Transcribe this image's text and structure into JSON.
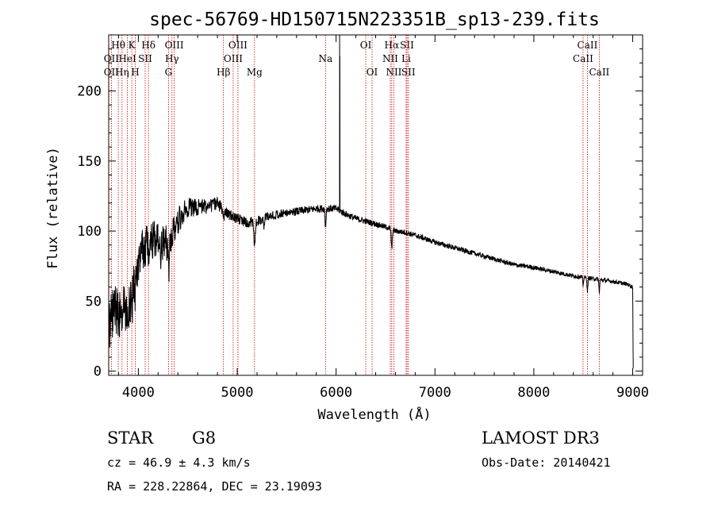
{
  "chart_data": {
    "type": "line",
    "title": "spec-56769-HD150715N223351B_sp13-239.fits",
    "xlabel": "Wavelength (Å)",
    "ylabel": "Flux (relative)",
    "xlim": [
      3700,
      9100
    ],
    "ylim": [
      -3,
      240
    ],
    "xticks": [
      4000,
      5000,
      6000,
      7000,
      8000,
      9000
    ],
    "yticks": [
      0,
      50,
      100,
      150,
      200
    ],
    "series": [
      {
        "name": "spectrum",
        "continuum": [
          [
            3700,
            30
          ],
          [
            3750,
            45
          ],
          [
            3800,
            40
          ],
          [
            3850,
            45
          ],
          [
            3900,
            45
          ],
          [
            3950,
            60
          ],
          [
            4000,
            78
          ],
          [
            4050,
            88
          ],
          [
            4100,
            92
          ],
          [
            4150,
            94
          ],
          [
            4200,
            92
          ],
          [
            4250,
            90
          ],
          [
            4300,
            92
          ],
          [
            4350,
            100
          ],
          [
            4400,
            107
          ],
          [
            4450,
            113
          ],
          [
            4500,
            117
          ],
          [
            4600,
            117
          ],
          [
            4700,
            118
          ],
          [
            4800,
            120
          ],
          [
            4900,
            112
          ],
          [
            5000,
            109
          ],
          [
            5100,
            106
          ],
          [
            5200,
            107
          ],
          [
            5300,
            110
          ],
          [
            5400,
            112
          ],
          [
            5500,
            113
          ],
          [
            5600,
            114
          ],
          [
            5700,
            115
          ],
          [
            5800,
            116
          ],
          [
            5900,
            116
          ],
          [
            6000,
            116
          ],
          [
            6100,
            112
          ],
          [
            6200,
            109
          ],
          [
            6300,
            107
          ],
          [
            6400,
            105
          ],
          [
            6500,
            103
          ],
          [
            6600,
            100
          ],
          [
            6700,
            99
          ],
          [
            6800,
            97
          ],
          [
            7000,
            92
          ],
          [
            7200,
            88
          ],
          [
            7400,
            84
          ],
          [
            7600,
            80
          ],
          [
            7800,
            76
          ],
          [
            8000,
            74
          ],
          [
            8200,
            71
          ],
          [
            8400,
            68
          ],
          [
            8600,
            66
          ],
          [
            8800,
            64
          ],
          [
            8950,
            62
          ],
          [
            9000,
            60
          ],
          [
            9005,
            2
          ]
        ],
        "absorption_lines": [
          {
            "x": 3934,
            "depth": 15,
            "width": 8
          },
          {
            "x": 3969,
            "depth": 12,
            "width": 8
          },
          {
            "x": 4101,
            "depth": 10,
            "width": 8
          },
          {
            "x": 4226,
            "depth": 8,
            "width": 5
          },
          {
            "x": 4308,
            "depth": 18,
            "width": 10
          },
          {
            "x": 4340,
            "depth": 10,
            "width": 7
          },
          {
            "x": 4861,
            "depth": 8,
            "width": 7
          },
          {
            "x": 5175,
            "depth": 18,
            "width": 10
          },
          {
            "x": 5270,
            "depth": 6,
            "width": 6
          },
          {
            "x": 5893,
            "depth": 13,
            "width": 7
          },
          {
            "x": 6563,
            "depth": 14,
            "width": 7
          },
          {
            "x": 8498,
            "depth": 6,
            "width": 6
          },
          {
            "x": 8542,
            "depth": 10,
            "width": 6
          },
          {
            "x": 8662,
            "depth": 9,
            "width": 6
          }
        ],
        "emission_spikes": [
          {
            "x": 6036,
            "peak": 240
          },
          {
            "x": 6038,
            "peak": 225
          }
        ],
        "noise_amplitude": [
          [
            3700,
            18
          ],
          [
            4000,
            16
          ],
          [
            4300,
            13
          ],
          [
            4500,
            7
          ],
          [
            4900,
            4
          ],
          [
            5500,
            3
          ],
          [
            6500,
            2
          ],
          [
            9000,
            1.4
          ]
        ]
      }
    ],
    "line_markers": [
      {
        "label": "Hθ",
        "x": 3797,
        "row": 1
      },
      {
        "label": "OII",
        "x": 3727,
        "row": 2
      },
      {
        "label": "OII",
        "x": 3727,
        "row": 3
      },
      {
        "label": "Hη",
        "x": 3835,
        "row": 3
      },
      {
        "label": "HeI",
        "x": 3889,
        "row": 2
      },
      {
        "label": "K",
        "x": 3934,
        "row": 1
      },
      {
        "label": "H",
        "x": 3969,
        "row": 3
      },
      {
        "label": "SII",
        "x": 4069,
        "row": 2
      },
      {
        "label": "Hδ",
        "x": 4102,
        "row": 1
      },
      {
        "label": "OIII",
        "x": 4363,
        "row": 1
      },
      {
        "label": "Hγ",
        "x": 4340,
        "row": 2
      },
      {
        "label": "G",
        "x": 4305,
        "row": 3
      },
      {
        "label": "OIII",
        "x": 5007,
        "row": 1
      },
      {
        "label": "OIII",
        "x": 4959,
        "row": 2
      },
      {
        "label": "Hβ",
        "x": 4861,
        "row": 3
      },
      {
        "label": "Mg",
        "x": 5175,
        "row": 3
      },
      {
        "label": "Na",
        "x": 5893,
        "row": 2
      },
      {
        "label": "OI",
        "x": 6300,
        "row": 1
      },
      {
        "label": "OI",
        "x": 6364,
        "row": 3
      },
      {
        "label": "Hα",
        "x": 6563,
        "row": 1
      },
      {
        "label": "SII",
        "x": 6717,
        "row": 1
      },
      {
        "label": "NII",
        "x": 6548,
        "row": 2
      },
      {
        "label": "Li",
        "x": 6708,
        "row": 2
      },
      {
        "label": "NII",
        "x": 6584,
        "row": 3
      },
      {
        "label": "SII",
        "x": 6731,
        "row": 3
      },
      {
        "label": "CaII",
        "x": 8542,
        "row": 1
      },
      {
        "label": "CaII",
        "x": 8498,
        "row": 2
      },
      {
        "label": "CaII",
        "x": 8662,
        "row": 3
      }
    ],
    "marker_color": "#cc0000",
    "line_color": "#000000"
  },
  "info": {
    "object_class": "STAR",
    "subclass": "G8",
    "survey": "LAMOST DR3",
    "redshift": "cz = 46.9 ± 4.3 km/s",
    "obs_date": "Obs-Date: 20140421",
    "coordinates": "RA = 228.22864, DEC =  23.19093"
  }
}
